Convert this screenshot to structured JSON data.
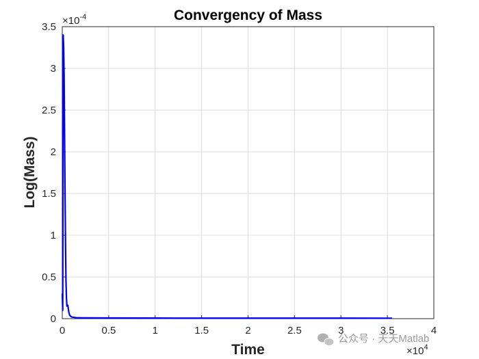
{
  "chart_data": {
    "type": "line",
    "title": "Convergency of Mass",
    "xlabel": "Time",
    "ylabel": "Log(Mass)",
    "xlim": [
      0,
      40000
    ],
    "ylim": [
      0,
      0.00035
    ],
    "x_ticks": [
      0,
      5000,
      10000,
      15000,
      20000,
      25000,
      30000,
      35000,
      40000
    ],
    "x_tick_labels": [
      "0",
      "0.5",
      "1",
      "1.5",
      "2",
      "2.5",
      "3",
      "3.5",
      "4"
    ],
    "y_ticks": [
      0,
      5e-05,
      0.0001,
      0.00015,
      0.0002,
      0.00025,
      0.0003,
      0.00035
    ],
    "y_tick_labels": [
      "0",
      "0.5",
      "1",
      "1.5",
      "2",
      "2.5",
      "3",
      "3.5"
    ],
    "x_multiplier_label": "×10",
    "x_multiplier_exp": "4",
    "y_multiplier_label": "×10",
    "y_multiplier_exp": "-4",
    "grid": true,
    "color": "#0000ff",
    "series": [
      {
        "x": [
          0,
          50,
          100,
          150,
          200,
          250,
          300,
          350,
          400,
          450,
          500,
          600,
          700,
          800,
          1000,
          1500,
          2000,
          5000,
          10000,
          20000,
          30000,
          35500
        ],
        "y": [
          3e-05,
          1e-05,
          0.00034,
          0.000325,
          0.00029,
          0.00022,
          0.00015,
          9e-05,
          4.5e-05,
          2.5e-05,
          1.5e-05,
          1.6e-05,
          8e-06,
          4e-06,
          2e-06,
          1.2e-06,
          1e-06,
          8e-07,
          7e-07,
          6e-07,
          6e-07,
          5e-07
        ]
      }
    ]
  },
  "watermark": "公众号 · 天天Matlab"
}
